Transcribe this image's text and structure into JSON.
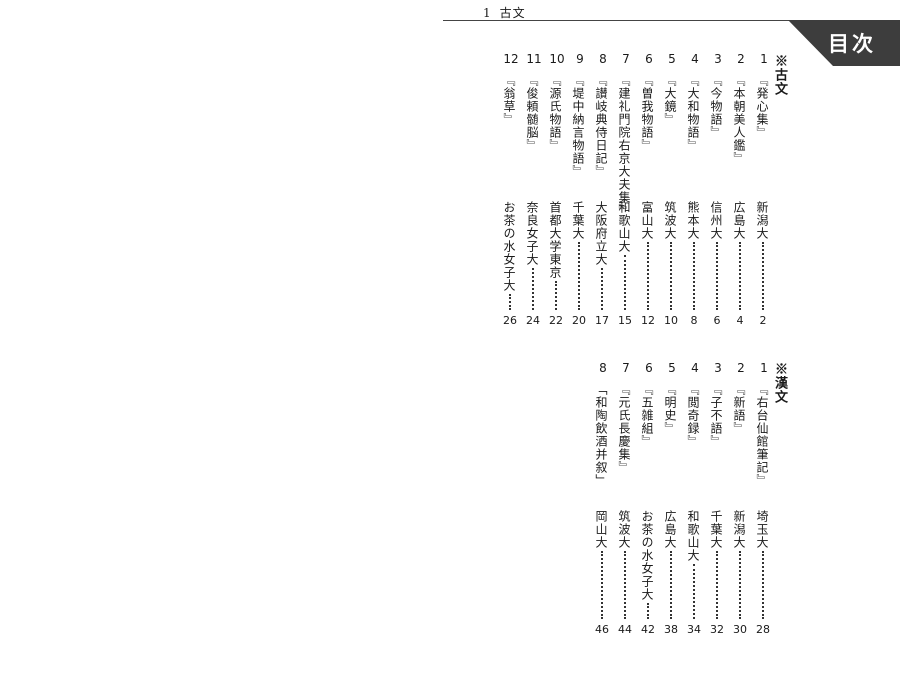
{
  "header": {
    "section_number": "1",
    "section_title": "古文",
    "tab_label": "目次"
  },
  "kobun": {
    "heading": "※古文",
    "entries": [
      {
        "no": "1",
        "title": "『発心集』",
        "univ": "新潟大",
        "page": "2"
      },
      {
        "no": "2",
        "title": "『本朝美人鑑』",
        "univ": "広島大",
        "page": "4"
      },
      {
        "no": "3",
        "title": "『今物語』",
        "univ": "信州大",
        "page": "6"
      },
      {
        "no": "4",
        "title": "『大和物語』",
        "univ": "熊本大",
        "page": "8"
      },
      {
        "no": "5",
        "title": "『大鏡』",
        "univ": "筑波大",
        "page": "10"
      },
      {
        "no": "6",
        "title": "『曽我物語』",
        "univ": "富山大",
        "page": "12"
      },
      {
        "no": "7",
        "title": "『建礼門院右京大夫集』",
        "univ": "和歌山大",
        "page": "15"
      },
      {
        "no": "8",
        "title": "『讃岐典侍日記』",
        "univ": "大阪府立大",
        "page": "17"
      },
      {
        "no": "9",
        "title": "『堤中納言物語』",
        "univ": "千葉大",
        "page": "20"
      },
      {
        "no": "10",
        "title": "『源氏物語』",
        "univ": "首都大学東京",
        "page": "22"
      },
      {
        "no": "11",
        "title": "『俊頼髄脳』",
        "univ": "奈良女子大",
        "page": "24"
      },
      {
        "no": "12",
        "title": "『翁草』",
        "univ": "お茶の水女子大",
        "page": "26"
      }
    ]
  },
  "kanbun": {
    "heading": "※漢文",
    "entries": [
      {
        "no": "1",
        "title": "『右台仙館筆記』",
        "univ": "埼玉大",
        "page": "28"
      },
      {
        "no": "2",
        "title": "『新語』",
        "univ": "新潟大",
        "page": "30"
      },
      {
        "no": "3",
        "title": "『子不語』",
        "univ": "千葉大",
        "page": "32"
      },
      {
        "no": "4",
        "title": "『閲奇録』",
        "univ": "和歌山大",
        "page": "34"
      },
      {
        "no": "5",
        "title": "『明史』",
        "univ": "広島大",
        "page": "38"
      },
      {
        "no": "6",
        "title": "『五雑組』",
        "univ": "お茶の水女子大",
        "page": "42"
      },
      {
        "no": "7",
        "title": "『元氏長慶集』",
        "univ": "筑波大",
        "page": "44"
      },
      {
        "no": "8",
        "title": "「和陶飲酒并叙」",
        "univ": "岡山大",
        "page": "46"
      }
    ]
  }
}
